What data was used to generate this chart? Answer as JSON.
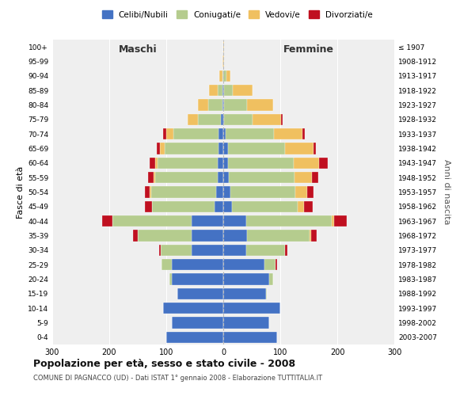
{
  "age_groups": [
    "0-4",
    "5-9",
    "10-14",
    "15-19",
    "20-24",
    "25-29",
    "30-34",
    "35-39",
    "40-44",
    "45-49",
    "50-54",
    "55-59",
    "60-64",
    "65-69",
    "70-74",
    "75-79",
    "80-84",
    "85-89",
    "90-94",
    "95-99",
    "100+"
  ],
  "birth_years": [
    "2003-2007",
    "1998-2002",
    "1993-1997",
    "1988-1992",
    "1983-1987",
    "1978-1982",
    "1973-1977",
    "1968-1972",
    "1963-1967",
    "1958-1962",
    "1953-1957",
    "1948-1952",
    "1943-1947",
    "1938-1942",
    "1933-1937",
    "1928-1932",
    "1923-1927",
    "1918-1922",
    "1913-1917",
    "1908-1912",
    "≤ 1907"
  ],
  "maschi": {
    "celibi": [
      100,
      90,
      105,
      80,
      90,
      90,
      55,
      55,
      55,
      15,
      12,
      10,
      10,
      8,
      8,
      4,
      2,
      2,
      0,
      0,
      0
    ],
    "coniugati": [
      0,
      0,
      0,
      0,
      5,
      18,
      55,
      95,
      140,
      110,
      115,
      110,
      105,
      95,
      80,
      40,
      25,
      8,
      2,
      0,
      0
    ],
    "vedovi": [
      0,
      0,
      0,
      0,
      0,
      0,
      0,
      0,
      0,
      0,
      2,
      2,
      4,
      8,
      12,
      18,
      18,
      15,
      5,
      2,
      0
    ],
    "divorziati": [
      0,
      0,
      0,
      0,
      0,
      0,
      2,
      8,
      18,
      12,
      8,
      10,
      10,
      5,
      5,
      0,
      0,
      0,
      0,
      0,
      0
    ]
  },
  "femmine": {
    "nubili": [
      95,
      80,
      100,
      75,
      80,
      72,
      40,
      42,
      40,
      15,
      12,
      10,
      8,
      8,
      4,
      2,
      2,
      2,
      0,
      0,
      0
    ],
    "coniugate": [
      0,
      0,
      0,
      2,
      8,
      20,
      68,
      110,
      150,
      115,
      115,
      115,
      115,
      100,
      85,
      50,
      40,
      15,
      5,
      0,
      0
    ],
    "vedove": [
      0,
      0,
      0,
      0,
      0,
      0,
      0,
      2,
      5,
      12,
      20,
      30,
      45,
      50,
      50,
      50,
      45,
      35,
      8,
      2,
      2
    ],
    "divorziate": [
      0,
      0,
      0,
      0,
      0,
      2,
      5,
      10,
      22,
      15,
      12,
      12,
      15,
      5,
      4,
      2,
      0,
      0,
      0,
      0,
      0
    ]
  },
  "colors": {
    "celibi_nubili": "#4472C4",
    "coniugati": "#B5CC8E",
    "vedovi": "#F0C060",
    "divorziati": "#C01020"
  },
  "title": "Popolazione per età, sesso e stato civile - 2008",
  "subtitle": "COMUNE DI PAGNACCO (UD) - Dati ISTAT 1° gennaio 2008 - Elaborazione TUTTITALIA.IT",
  "xlabel_left": "Maschi",
  "xlabel_right": "Femmine",
  "ylabel_left": "Fasce di età",
  "ylabel_right": "Anni di nascita",
  "xlim": 300,
  "bg_color": "#ffffff",
  "plot_bg": "#efefef",
  "legend_labels": [
    "Celibi/Nubili",
    "Coniugati/e",
    "Vedovi/e",
    "Divorziati/e"
  ]
}
